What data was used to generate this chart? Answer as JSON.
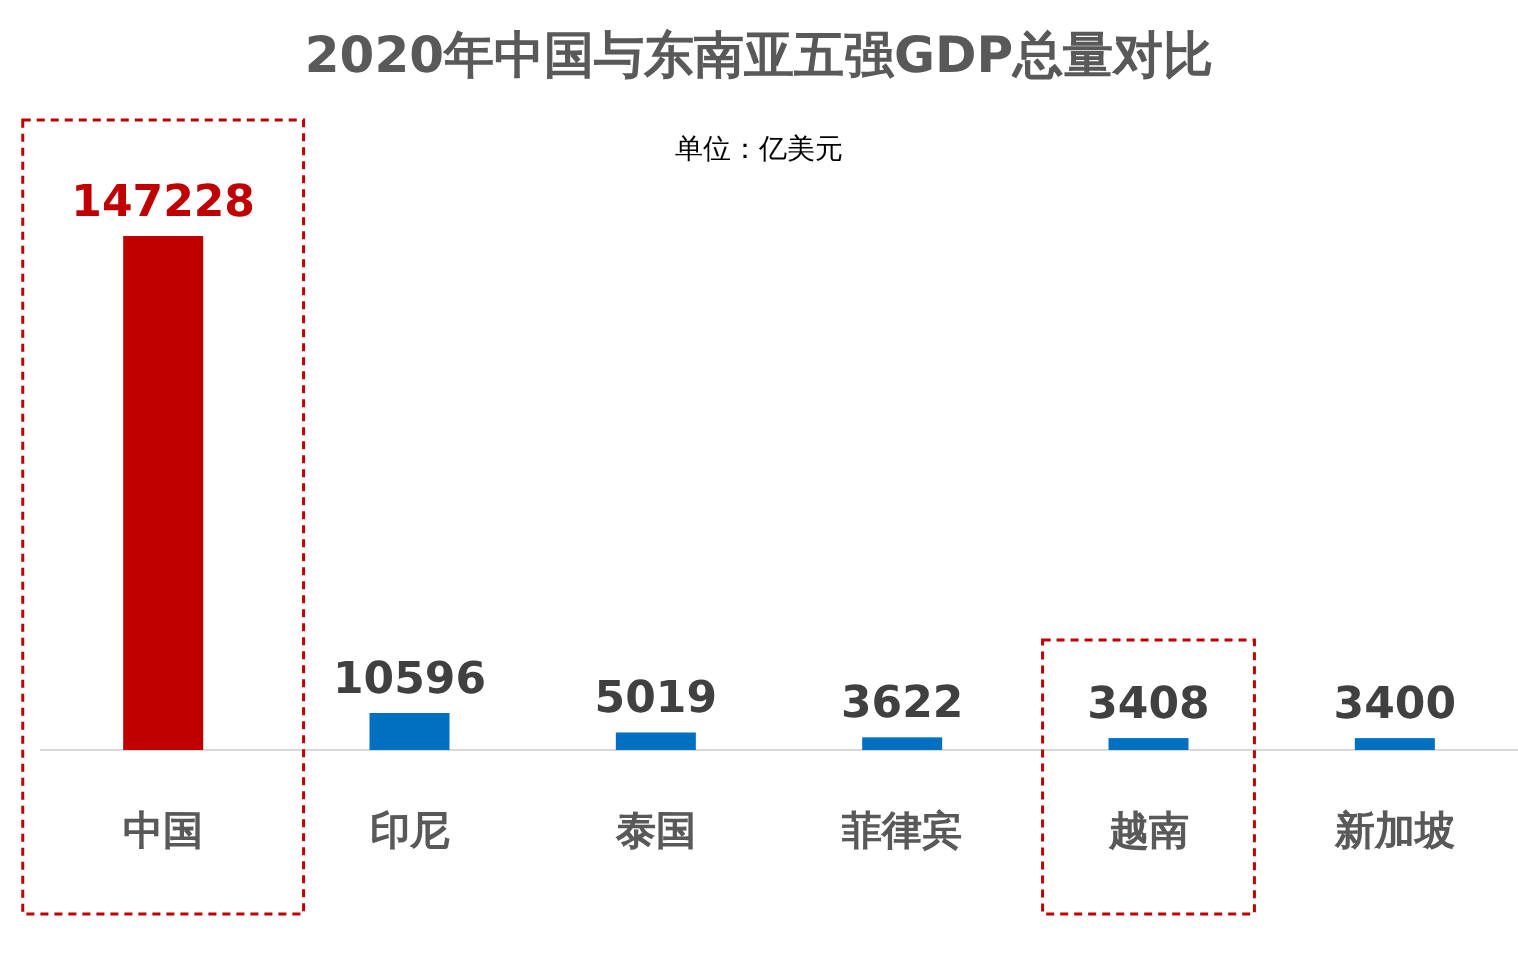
{
  "chart_data": {
    "type": "bar",
    "title": "2020年中国与东南亚五强GDP总量对比",
    "subtitle": "单位：亿美元",
    "categories": [
      "中国",
      "印尼",
      "泰国",
      "菲律宾",
      "越南",
      "新加坡"
    ],
    "values": [
      147228,
      10596,
      5019,
      3622,
      3408,
      3400
    ],
    "colors": [
      "#c00000",
      "#0070c0",
      "#0070c0",
      "#0070c0",
      "#0070c0",
      "#0070c0"
    ],
    "data_labels": true
  }
}
